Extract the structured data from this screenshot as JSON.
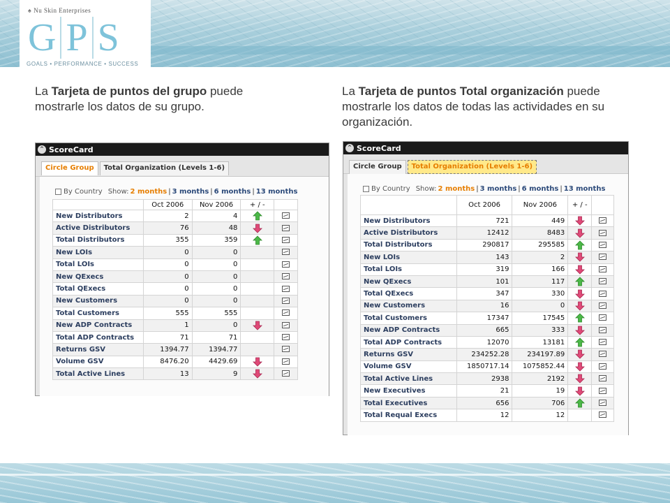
{
  "header": {
    "brand": "Nu Skin Enterprises",
    "logo_letters": [
      "G",
      "P",
      "S"
    ],
    "tagline": "GOALS • PERFORMANCE • SUCCESS"
  },
  "captions": {
    "left": {
      "prefix": "La ",
      "bold": "Tarjeta de puntos del grupo",
      "rest": " puede mostrarle los datos de su grupo."
    },
    "right": {
      "prefix": "La ",
      "bold": "Tarjeta de puntos Total organización",
      "rest": " puede mostrarle los datos de todas las actividades en su organización."
    }
  },
  "colors": {
    "accent_orange": "#e67e00",
    "title_bar": "#1a1a1a",
    "up_green": "#4cb848",
    "down_pink": "#e04a78"
  },
  "scorecards": [
    {
      "title": "ScoreCard",
      "tabs": [
        "Circle Group",
        "Total Organization (Levels 1-6)"
      ],
      "active_tab": 0,
      "filter": {
        "label": "By Country",
        "show": "Show:",
        "options": [
          "2 months",
          "3 months",
          "6 months",
          "13 months"
        ],
        "selected": 0
      },
      "columns": [
        "",
        "Oct 2006",
        "Nov 2006",
        "+ / -",
        ""
      ],
      "rows": [
        {
          "label": "New Distributors",
          "oct": "2",
          "nov": "4",
          "trend": "up"
        },
        {
          "label": "Active Distributors",
          "oct": "76",
          "nov": "48",
          "trend": "down"
        },
        {
          "label": "Total Distributors",
          "oct": "355",
          "nov": "359",
          "trend": "up"
        },
        {
          "label": "New LOIs",
          "oct": "0",
          "nov": "0",
          "trend": ""
        },
        {
          "label": "Total LOIs",
          "oct": "0",
          "nov": "0",
          "trend": ""
        },
        {
          "label": "New QExecs",
          "oct": "0",
          "nov": "0",
          "trend": ""
        },
        {
          "label": "Total QExecs",
          "oct": "0",
          "nov": "0",
          "trend": ""
        },
        {
          "label": "New Customers",
          "oct": "0",
          "nov": "0",
          "trend": ""
        },
        {
          "label": "Total Customers",
          "oct": "555",
          "nov": "555",
          "trend": ""
        },
        {
          "label": "New ADP Contracts",
          "oct": "1",
          "nov": "0",
          "trend": "down"
        },
        {
          "label": "Total ADP Contracts",
          "oct": "71",
          "nov": "71",
          "trend": ""
        },
        {
          "label": "Returns GSV",
          "oct": "1394.77",
          "nov": "1394.77",
          "trend": ""
        },
        {
          "label": "Volume GSV",
          "oct": "8476.20",
          "nov": "4429.69",
          "trend": "down"
        },
        {
          "label": "Total Active Lines",
          "oct": "13",
          "nov": "9",
          "trend": "down"
        }
      ]
    },
    {
      "title": "ScoreCard",
      "tabs": [
        "Circle Group",
        "Total Organization (Levels 1-6)"
      ],
      "active_tab": 1,
      "filter": {
        "label": "By Country",
        "show": "Show:",
        "options": [
          "2 months",
          "3 months",
          "6 months",
          "13 months"
        ],
        "selected": 0
      },
      "columns": [
        "",
        "Oct 2006",
        "Nov 2006",
        "+ / -",
        ""
      ],
      "rows": [
        {
          "label": "New Distributors",
          "oct": "721",
          "nov": "449",
          "trend": "down"
        },
        {
          "label": "Active Distributors",
          "oct": "12412",
          "nov": "8483",
          "trend": "down"
        },
        {
          "label": "Total Distributors",
          "oct": "290817",
          "nov": "295585",
          "trend": "up"
        },
        {
          "label": "New LOIs",
          "oct": "143",
          "nov": "2",
          "trend": "down"
        },
        {
          "label": "Total LOIs",
          "oct": "319",
          "nov": "166",
          "trend": "down"
        },
        {
          "label": "New QExecs",
          "oct": "101",
          "nov": "117",
          "trend": "up"
        },
        {
          "label": "Total QExecs",
          "oct": "347",
          "nov": "330",
          "trend": "down"
        },
        {
          "label": "New Customers",
          "oct": "16",
          "nov": "0",
          "trend": "down"
        },
        {
          "label": "Total Customers",
          "oct": "17347",
          "nov": "17545",
          "trend": "up"
        },
        {
          "label": "New ADP Contracts",
          "oct": "665",
          "nov": "333",
          "trend": "down"
        },
        {
          "label": "Total ADP Contracts",
          "oct": "12070",
          "nov": "13181",
          "trend": "up"
        },
        {
          "label": "Returns GSV",
          "oct": "234252.28",
          "nov": "234197.89",
          "trend": "down"
        },
        {
          "label": "Volume GSV",
          "oct": "1850717.14",
          "nov": "1075852.44",
          "trend": "down"
        },
        {
          "label": "Total Active Lines",
          "oct": "2938",
          "nov": "2192",
          "trend": "down"
        },
        {
          "label": "New Executives",
          "oct": "21",
          "nov": "19",
          "trend": "down"
        },
        {
          "label": "Total Executives",
          "oct": "656",
          "nov": "706",
          "trend": "up"
        },
        {
          "label": "Total Requal Execs",
          "oct": "12",
          "nov": "12",
          "trend": ""
        }
      ]
    }
  ]
}
